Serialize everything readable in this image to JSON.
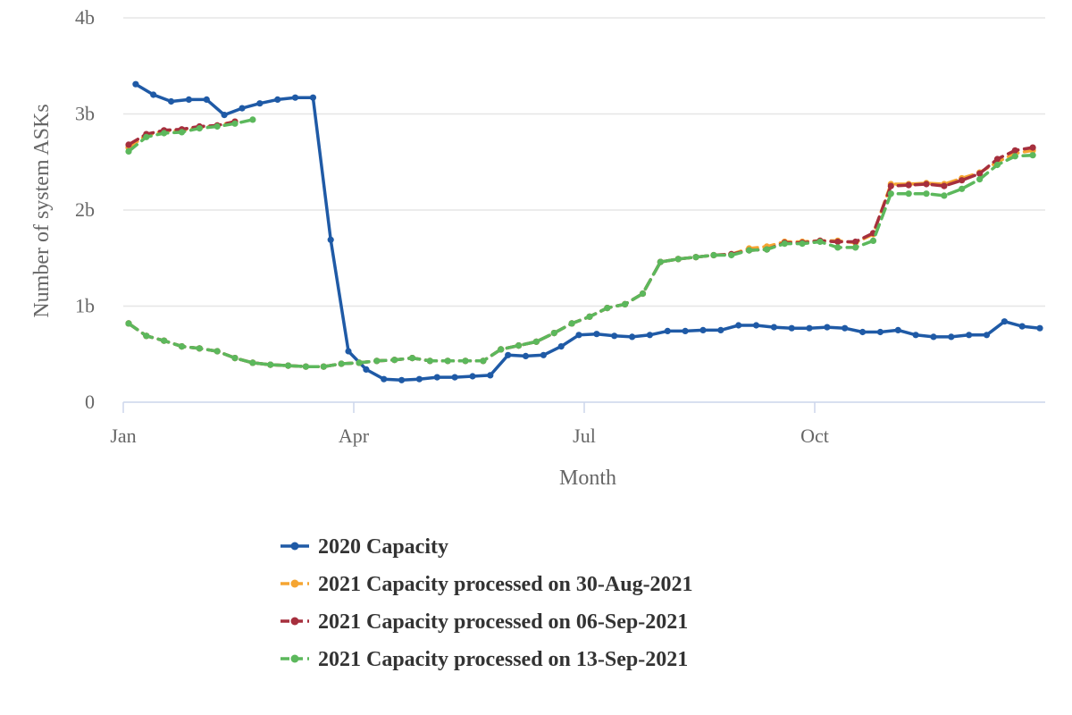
{
  "chart_data": {
    "type": "line",
    "title": "",
    "xlabel": "Month",
    "ylabel": "Number of system ASKs",
    "x_ticks": [
      {
        "label": "Jan",
        "week": 0
      },
      {
        "label": "Apr",
        "week": 13
      },
      {
        "label": "Jul",
        "week": 26
      },
      {
        "label": "Oct",
        "week": 39
      }
    ],
    "y_ticks": [
      {
        "label": "0",
        "value": 0
      },
      {
        "label": "1b",
        "value": 1
      },
      {
        "label": "2b",
        "value": 2
      },
      {
        "label": "3b",
        "value": 3
      },
      {
        "label": "4b",
        "value": 4
      }
    ],
    "ylim": [
      0,
      4
    ],
    "week_range": [
      0,
      52
    ],
    "grid": "horizontal",
    "legend_position": "bottom",
    "x_unit": "week of year",
    "y_unit": "billions",
    "series": [
      {
        "name": "2020 Capacity",
        "color": "#1f5aa6",
        "dashed": false,
        "segments": [
          {
            "start_week": 0.7,
            "values": [
              3.31,
              3.2,
              3.13,
              3.15,
              3.15,
              2.99,
              3.06,
              3.11,
              3.15,
              3.17,
              3.17,
              1.69,
              0.53,
              0.34,
              0.24,
              0.23,
              0.24,
              0.26,
              0.26,
              0.27,
              0.28,
              0.49,
              0.48,
              0.49,
              0.58,
              0.7,
              0.71,
              0.69,
              0.68,
              0.7,
              0.74,
              0.74,
              0.75,
              0.75,
              0.8,
              0.8,
              0.78,
              0.77,
              0.77,
              0.78,
              0.77,
              0.73,
              0.73,
              0.75,
              0.7,
              0.68,
              0.68,
              0.7,
              0.7,
              0.84,
              0.79,
              0.77
            ]
          }
        ]
      },
      {
        "name": "2021 Capacity processed on 30-Aug-2021",
        "color": "#f5a532",
        "dashed": true,
        "segments": [
          {
            "start_week": 0.3,
            "values": [
              2.65,
              2.78,
              2.82,
              2.83,
              2.86,
              2.88,
              2.92
            ]
          },
          {
            "start_week": 0.3,
            "values": [
              0.82,
              0.69,
              0.64,
              0.58,
              0.56,
              0.53,
              0.46,
              0.41,
              0.39,
              0.38,
              0.37,
              0.37,
              0.4,
              0.41,
              0.43,
              0.44,
              0.46,
              0.43,
              0.43,
              0.43,
              0.43,
              0.55,
              0.59,
              0.63,
              0.72,
              0.82,
              0.89,
              0.98,
              1.02,
              1.13,
              1.46,
              1.49,
              1.51,
              1.53,
              1.54,
              1.6,
              1.62,
              1.67,
              1.67,
              1.68,
              1.68,
              1.66,
              1.75,
              2.27,
              2.27,
              2.28,
              2.27,
              2.33,
              2.39,
              2.5,
              2.59,
              2.62
            ]
          }
        ]
      },
      {
        "name": "2021 Capacity processed on 06-Sep-2021",
        "color": "#a62f3d",
        "dashed": true,
        "segments": [
          {
            "start_week": 0.3,
            "values": [
              2.68,
              2.79,
              2.83,
              2.84,
              2.87,
              2.88,
              2.92
            ]
          },
          {
            "start_week": 0.3,
            "values": [
              0.82,
              0.69,
              0.64,
              0.58,
              0.56,
              0.53,
              0.46,
              0.41,
              0.39,
              0.38,
              0.37,
              0.37,
              0.4,
              0.41,
              0.43,
              0.44,
              0.46,
              0.43,
              0.43,
              0.43,
              0.43,
              0.55,
              0.59,
              0.63,
              0.72,
              0.82,
              0.89,
              0.98,
              1.02,
              1.13,
              1.46,
              1.49,
              1.51,
              1.53,
              1.54,
              1.58,
              1.59,
              1.66,
              1.66,
              1.68,
              1.67,
              1.67,
              1.76,
              2.25,
              2.26,
              2.27,
              2.25,
              2.31,
              2.38,
              2.53,
              2.62,
              2.65
            ]
          }
        ]
      },
      {
        "name": "2021 Capacity processed on 13-Sep-2021",
        "color": "#5cb85c",
        "dashed": true,
        "segments": [
          {
            "start_week": 0.3,
            "values": [
              2.61,
              2.76,
              2.8,
              2.81,
              2.85,
              2.87,
              2.9,
              2.94
            ]
          },
          {
            "start_week": 0.3,
            "values": [
              0.82,
              0.69,
              0.64,
              0.58,
              0.56,
              0.53,
              0.46,
              0.41,
              0.39,
              0.38,
              0.37,
              0.37,
              0.4,
              0.41,
              0.43,
              0.44,
              0.46,
              0.43,
              0.43,
              0.43,
              0.43,
              0.55,
              0.59,
              0.63,
              0.72,
              0.82,
              0.89,
              0.98,
              1.02,
              1.13,
              1.46,
              1.49,
              1.51,
              1.53,
              1.53,
              1.58,
              1.59,
              1.65,
              1.65,
              1.67,
              1.61,
              1.61,
              1.68,
              2.17,
              2.17,
              2.17,
              2.15,
              2.22,
              2.32,
              2.47,
              2.56,
              2.57
            ]
          }
        ]
      }
    ]
  }
}
